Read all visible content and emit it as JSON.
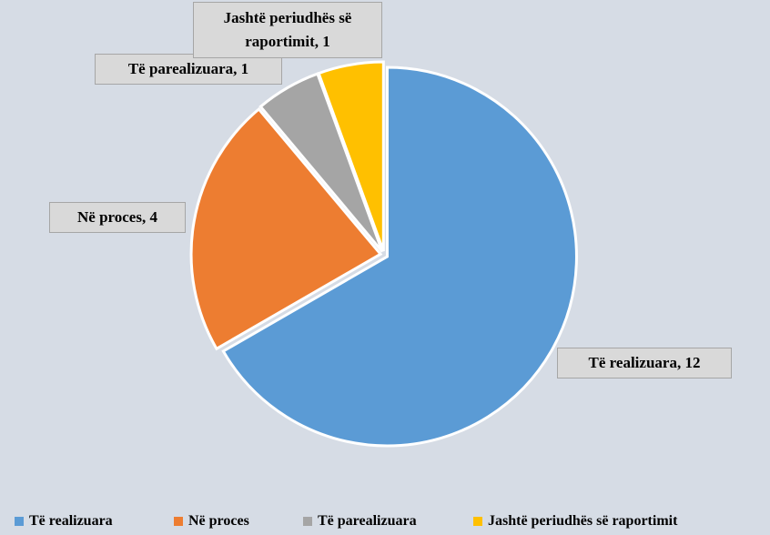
{
  "chart_data": {
    "type": "pie",
    "categories": [
      "Të realizuara",
      "Në proces",
      "Të parealizuara",
      "Jashtë periudhës së raportimit"
    ],
    "values": [
      12,
      4,
      1,
      1
    ],
    "value_labels": [
      "Të realizuara, 12",
      "Në proces, 4",
      "Të parealizuara, 1",
      "Jashtë periudhës së raportimit, 1"
    ],
    "colors": [
      "#5b9bd5",
      "#ed7d31",
      "#a5a5a5",
      "#ffc000"
    ],
    "legend": "bottom"
  }
}
